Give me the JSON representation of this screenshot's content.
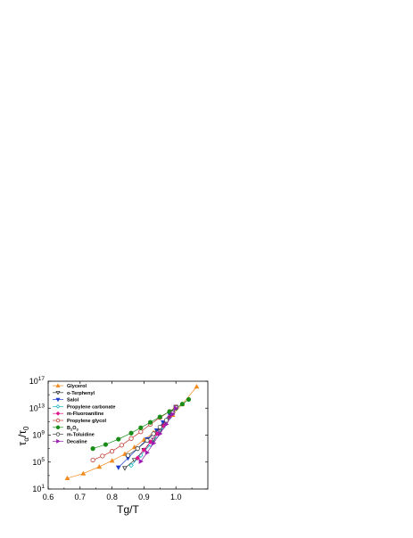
{
  "chart_data": {
    "type": "line",
    "title": "",
    "xlabel": "Tg/T",
    "ylabel": "τα/τ0",
    "ylabel_parts": {
      "main": "τ",
      "sub1": "α",
      "sep": "/τ",
      "sub2": "0"
    },
    "log_y": true,
    "xlim": [
      0.6,
      1.1
    ],
    "ylim_exponent": [
      1,
      17
    ],
    "x_ticks": [
      0.6,
      0.7,
      0.8,
      0.9,
      1.0
    ],
    "x_tick_labels": [
      "0.6",
      "0.7",
      "0.8",
      "0.9",
      "1.0"
    ],
    "y_ticks": [
      {
        "exp": 1,
        "base": "10",
        "sup": "1"
      },
      {
        "exp": 5,
        "base": "10",
        "sup": "5"
      },
      {
        "exp": 9,
        "base": "10",
        "sup": "9"
      },
      {
        "exp": 13,
        "base": "10",
        "sup": "13"
      },
      {
        "exp": 17,
        "base": "10",
        "sup": "17"
      }
    ],
    "legend_position": "top-left",
    "series": [
      {
        "name": "Glycerol",
        "color": "#f28a1e",
        "marker": "triangle-up",
        "filled": true,
        "x": [
          0.66,
          0.71,
          0.76,
          0.8,
          0.84,
          0.87,
          0.9,
          0.93,
          0.96,
          0.99,
          1.02,
          1.065
        ],
        "y": [
          2.6,
          3.3,
          4.3,
          5.2,
          6.2,
          7.2,
          8.3,
          9.4,
          10.6,
          12.0,
          13.6,
          16.2
        ]
      },
      {
        "name": "o-Terphenyl",
        "color": "#333333",
        "marker": "triangle-down",
        "filled": false,
        "x": [
          0.84,
          0.87,
          0.9,
          0.93,
          0.95,
          0.97,
          0.99,
          1.0
        ],
        "y": [
          4.1,
          5.3,
          6.8,
          8.3,
          9.6,
          10.9,
          12.2,
          13.1
        ]
      },
      {
        "name": "Salol",
        "color": "#1f3fcf",
        "marker": "triangle-down",
        "filled": true,
        "x": [
          0.82,
          0.85,
          0.88,
          0.91,
          0.94,
          0.96,
          0.98,
          1.0
        ],
        "y": [
          4.2,
          5.6,
          7.0,
          8.4,
          9.7,
          10.9,
          12.1,
          13.2
        ]
      },
      {
        "name": "Propylene carbonate",
        "color": "#19b6c4",
        "marker": "diamond",
        "filled": false,
        "x": [
          0.86,
          0.89,
          0.92,
          0.94,
          0.96,
          0.98,
          1.0
        ],
        "y": [
          4.5,
          6.0,
          7.6,
          8.9,
          10.2,
          11.6,
          13.0
        ]
      },
      {
        "name": "m-Fluoroaniline",
        "color": "#e0158c",
        "marker": "diamond",
        "filled": true,
        "x": [
          0.88,
          0.9,
          0.92,
          0.94,
          0.96,
          0.98,
          1.0
        ],
        "y": [
          5.6,
          6.8,
          8.0,
          9.2,
          10.4,
          11.7,
          13.0
        ]
      },
      {
        "name": "Propylene glycol",
        "color": "#c0392b",
        "marker": "circle",
        "filled": false,
        "x": [
          0.74,
          0.77,
          0.8,
          0.83,
          0.86,
          0.89,
          0.92,
          0.95,
          0.98,
          1.0
        ],
        "y": [
          5.3,
          5.9,
          6.6,
          7.5,
          8.5,
          9.5,
          10.6,
          11.6,
          12.5,
          13.2
        ]
      },
      {
        "name": "B2O3",
        "label_main": "B",
        "label_sub1": "2",
        "label_mid": "O",
        "label_sub2": "3",
        "color": "#1a8c1a",
        "marker": "circle",
        "filled": true,
        "x": [
          0.74,
          0.78,
          0.82,
          0.86,
          0.89,
          0.92,
          0.95,
          0.98,
          1.0,
          1.02,
          1.04
        ],
        "y": [
          7.0,
          7.6,
          8.4,
          9.3,
          10.1,
          10.9,
          11.7,
          12.5,
          13.0,
          13.6,
          14.3
        ]
      },
      {
        "name": "m-Toluidine",
        "color": "#444444",
        "marker": "circle",
        "filled": false,
        "x": [
          0.85,
          0.88,
          0.91,
          0.93,
          0.95,
          0.97,
          0.99,
          1.0
        ],
        "y": [
          6.0,
          7.0,
          8.2,
          9.2,
          10.2,
          11.2,
          12.3,
          13.1
        ]
      },
      {
        "name": "Decaline",
        "color": "#9b1fb0",
        "marker": "triangle-right",
        "filled": true,
        "x": [
          0.89,
          0.91,
          0.93,
          0.95,
          0.97,
          0.99,
          1.0
        ],
        "y": [
          5.1,
          6.4,
          7.8,
          9.2,
          10.6,
          12.1,
          13.0
        ]
      }
    ]
  }
}
